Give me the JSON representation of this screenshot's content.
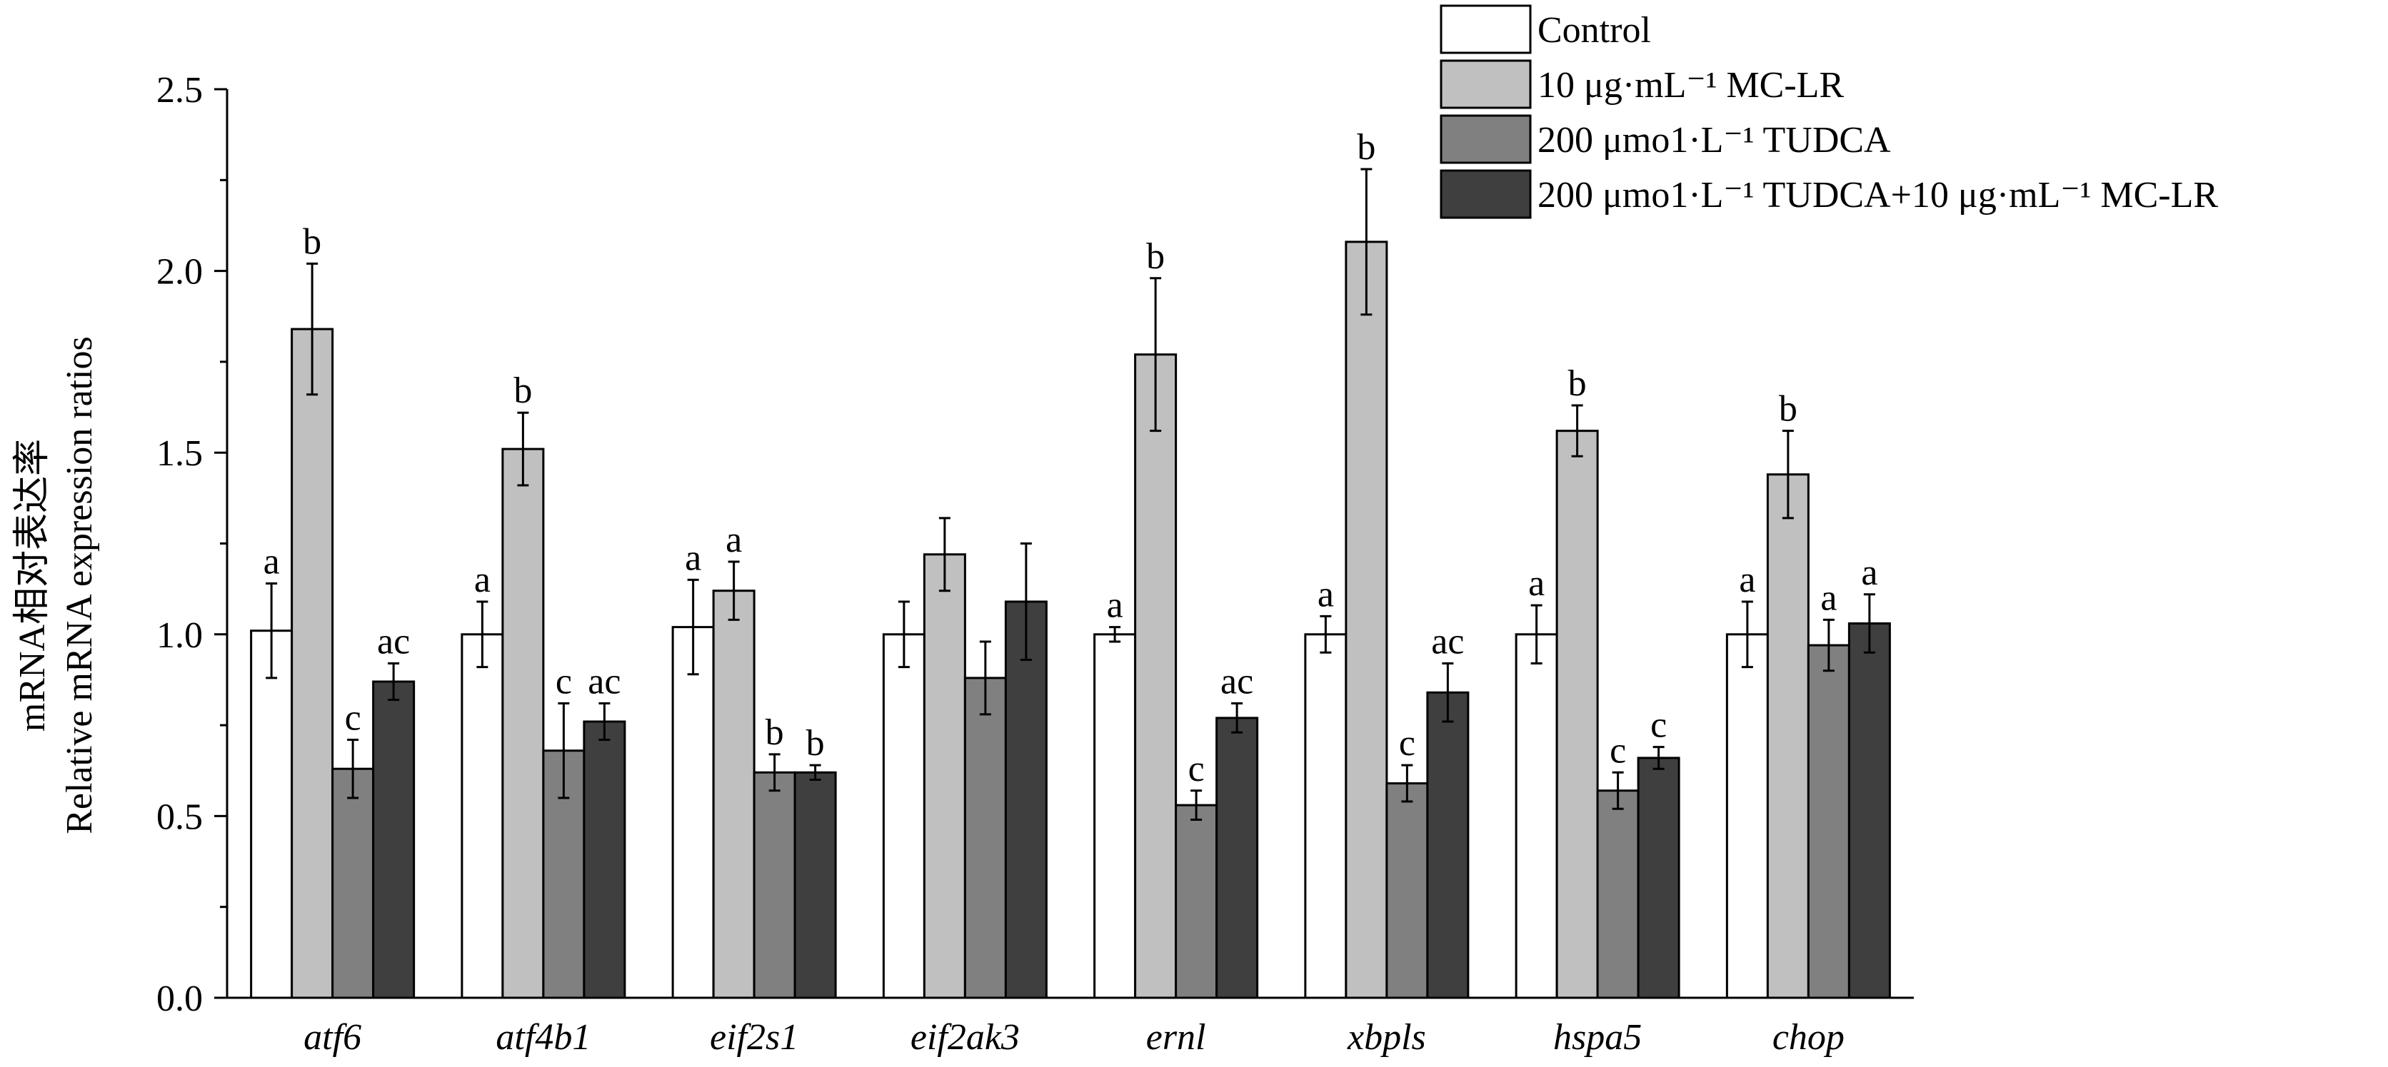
{
  "chart_data": {
    "type": "bar",
    "ylabel_cn": "mRNA相对表达率",
    "ylabel": "Relative mRNA expression ratios",
    "ylim": [
      0,
      2.5
    ],
    "yticks": [
      "0.0",
      "0.5",
      "1.0",
      "1.5",
      "2.0",
      "2.5"
    ],
    "categories": [
      "atf6",
      "atf4b1",
      "eif2s1",
      "eif2ak3",
      "ernl",
      "xbpls",
      "hspa5",
      "chop"
    ],
    "legend_position": "top-right",
    "series": [
      {
        "name": "Control",
        "color": "#ffffff",
        "values": [
          1.01,
          1.0,
          1.02,
          1.0,
          1.0,
          1.0,
          1.0,
          1.0
        ],
        "errors": [
          0.13,
          0.09,
          0.13,
          0.09,
          0.02,
          0.05,
          0.08,
          0.09
        ],
        "letters": [
          "a",
          "a",
          "a",
          "",
          "a",
          "a",
          "a",
          "a"
        ]
      },
      {
        "name": "10 μg·mL⁻¹ MC-LR",
        "color": "#c0c0c0",
        "values": [
          1.84,
          1.51,
          1.12,
          1.22,
          1.77,
          2.08,
          1.56,
          1.44
        ],
        "errors": [
          0.18,
          0.1,
          0.08,
          0.1,
          0.21,
          0.2,
          0.07,
          0.12
        ],
        "letters": [
          "b",
          "b",
          "a",
          "",
          "b",
          "b",
          "b",
          "b"
        ]
      },
      {
        "name": "200 μmo1·L⁻¹ TUDCA",
        "color": "#808080",
        "values": [
          0.63,
          0.68,
          0.62,
          0.88,
          0.53,
          0.59,
          0.57,
          0.97
        ],
        "errors": [
          0.08,
          0.13,
          0.05,
          0.1,
          0.04,
          0.05,
          0.05,
          0.07
        ],
        "letters": [
          "c",
          "c",
          "b",
          "",
          "c",
          "c",
          "c",
          "a"
        ]
      },
      {
        "name": "200 μmo1·L⁻¹ TUDCA+10 μg·mL⁻¹ MC-LR",
        "color": "#3f3f3f",
        "values": [
          0.87,
          0.76,
          0.62,
          1.09,
          0.77,
          0.84,
          0.66,
          1.03
        ],
        "errors": [
          0.05,
          0.05,
          0.02,
          0.16,
          0.04,
          0.08,
          0.03,
          0.08
        ],
        "letters": [
          "ac",
          "ac",
          "b",
          "",
          "ac",
          "ac",
          "c",
          "a"
        ]
      }
    ]
  }
}
